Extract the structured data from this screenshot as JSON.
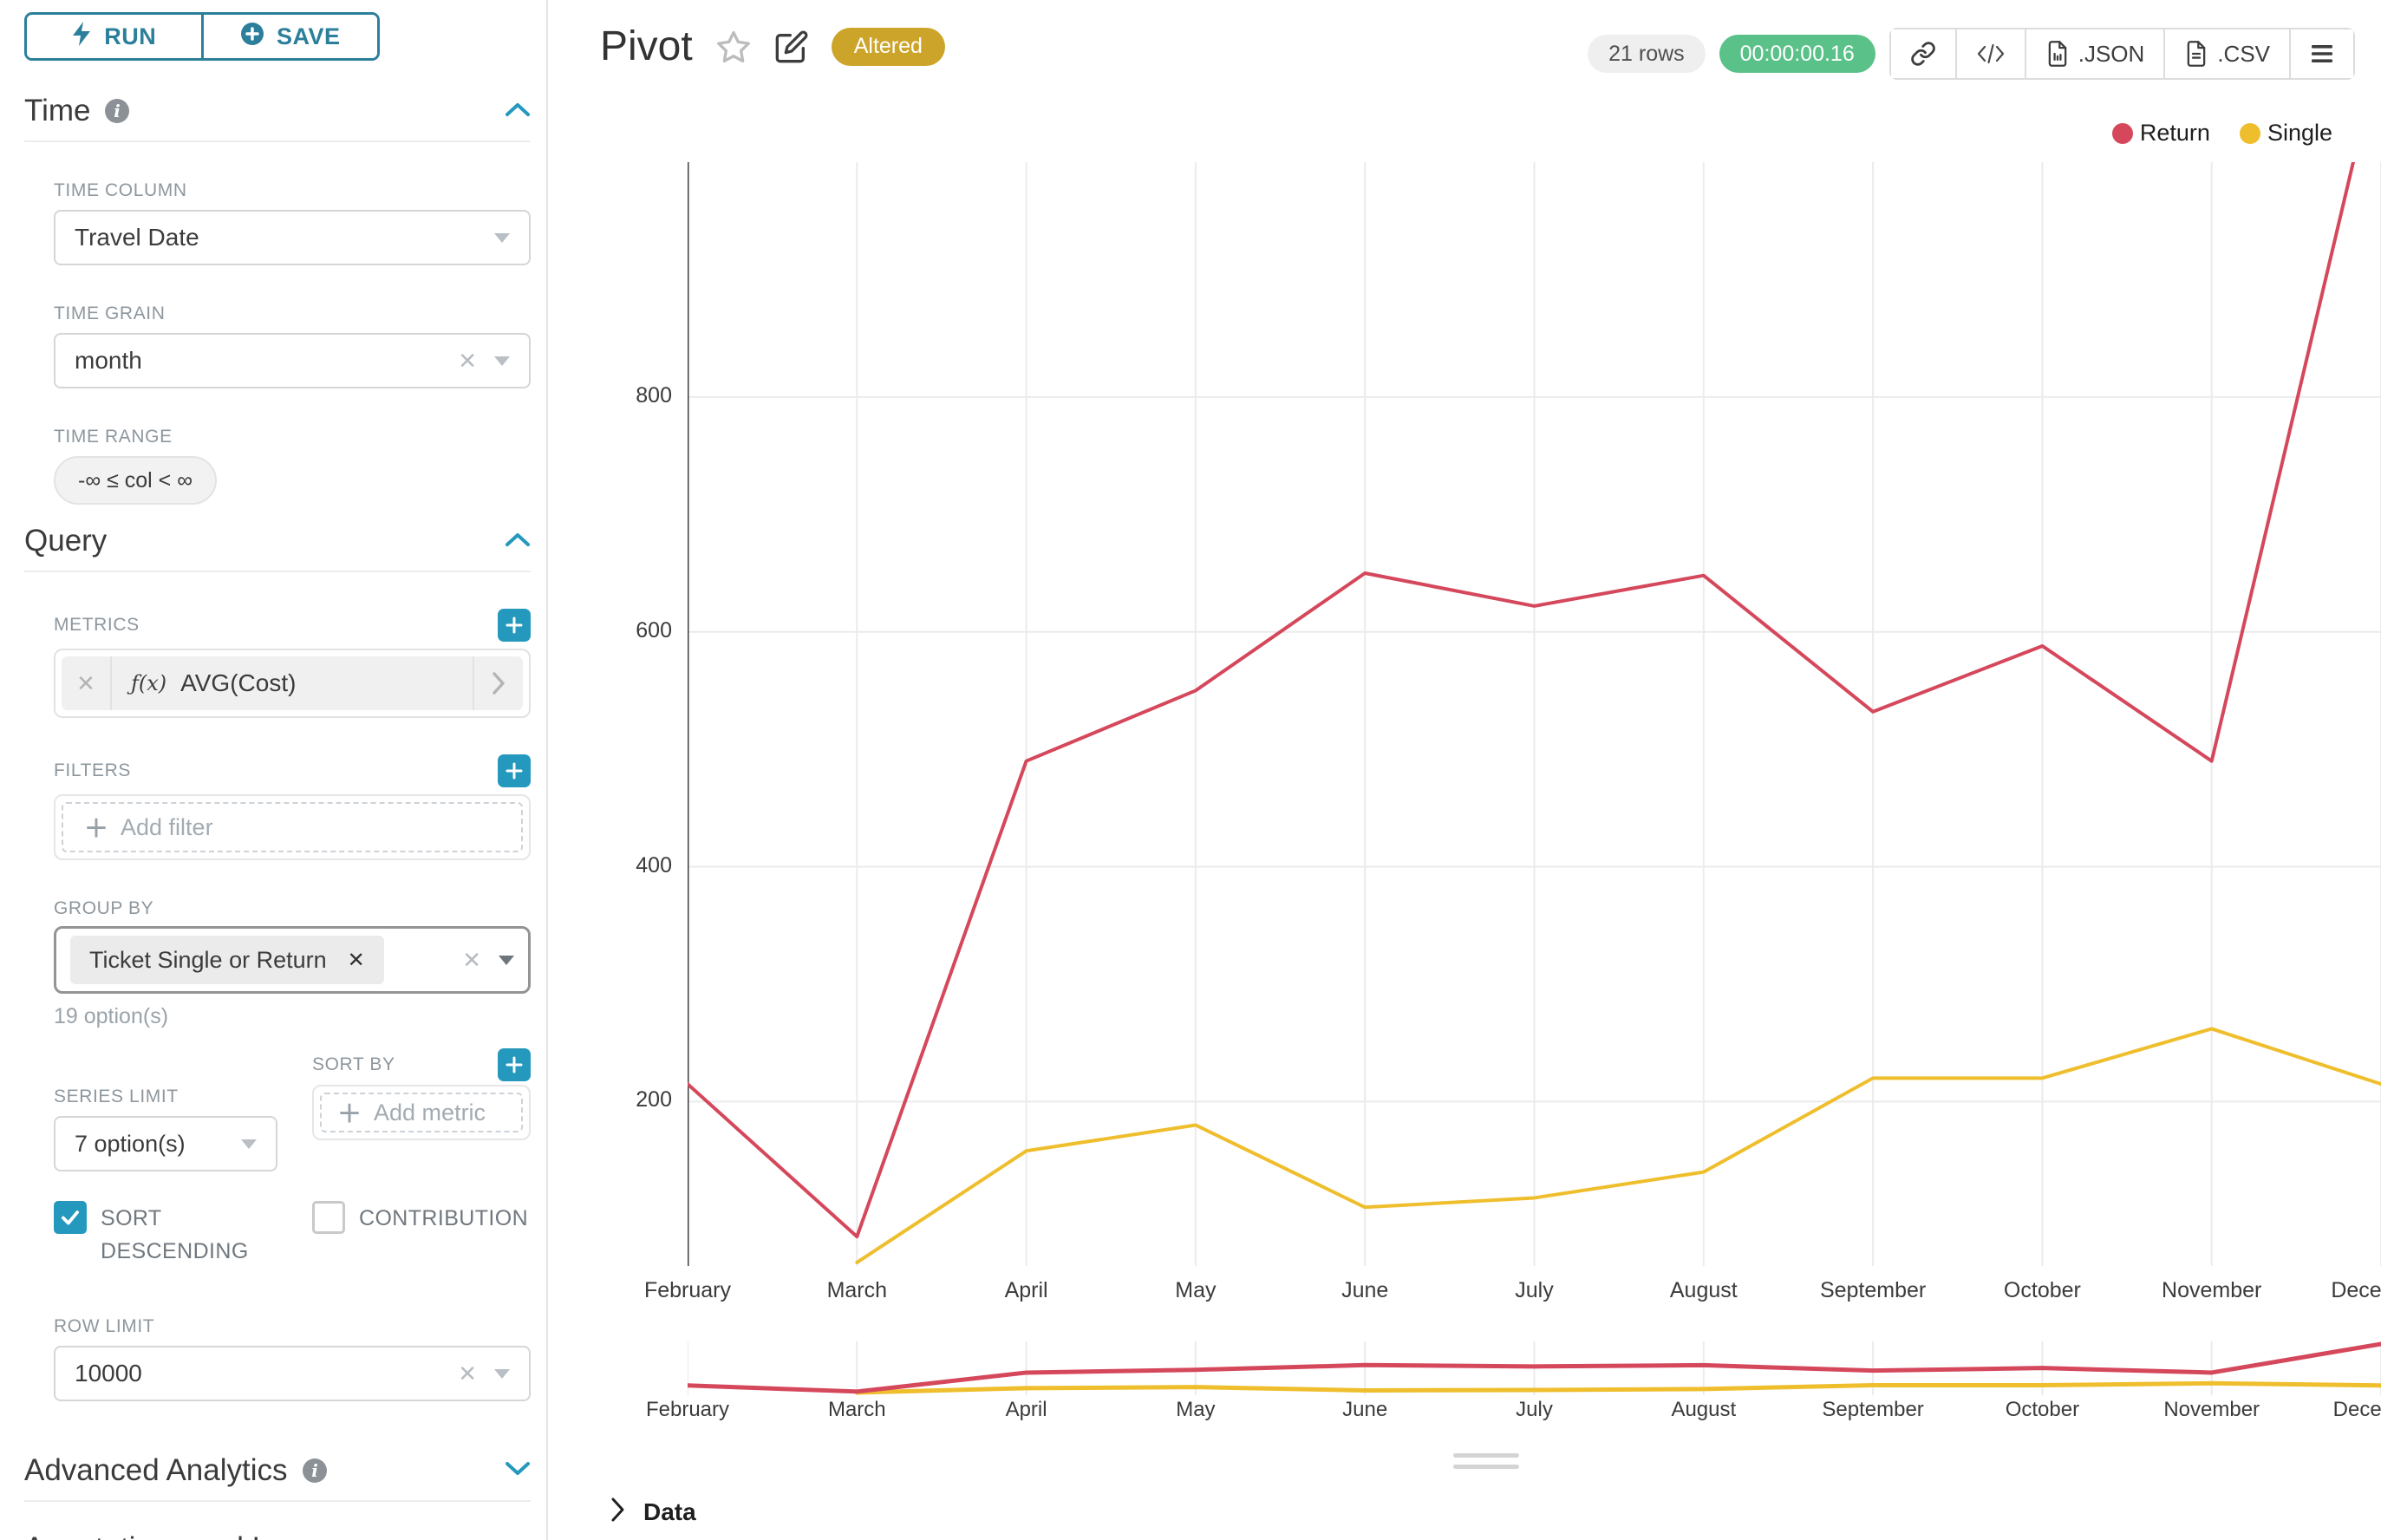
{
  "colors": {
    "accent": "#2499bd",
    "accent_text": "#2c7f9b",
    "altered_badge": "#cda42a",
    "success": "#5ac189",
    "grid": "#ebebeb",
    "axis": "#3f3f3f"
  },
  "sidebar": {
    "run_label": "RUN",
    "save_label": "SAVE",
    "time": {
      "title": "Time",
      "column_label": "TIME COLUMN",
      "column_value": "Travel Date",
      "grain_label": "TIME GRAIN",
      "grain_value": "month",
      "range_label": "TIME RANGE",
      "range_value": "-∞ ≤ col < ∞"
    },
    "query": {
      "title": "Query",
      "metrics_label": "METRICS",
      "metric_fx": "ƒ(x)",
      "metric_value": "AVG(Cost)",
      "filters_label": "FILTERS",
      "add_filter_placeholder": "Add filter",
      "group_by_label": "GROUP BY",
      "group_chip": "Ticket Single or Return",
      "options_hint": "19 option(s)",
      "series_limit_label": "SERIES LIMIT",
      "series_limit_value": "7 option(s)",
      "sort_by_label": "SORT BY",
      "add_metric_placeholder": "Add metric",
      "sort_descending_label": "SORT DESCENDING",
      "contribution_label": "CONTRIBUTION",
      "row_limit_label": "ROW LIMIT",
      "row_limit_value": "10000"
    },
    "advanced_title": "Advanced Analytics",
    "annotations_title": "Annotations and Layers"
  },
  "header": {
    "title": "Pivot",
    "altered_badge": "Altered",
    "rows_badge": "21 rows",
    "timer_badge": "00:00:00.16",
    "export_json_label": ".JSON",
    "export_csv_label": ".CSV"
  },
  "chart_data": {
    "type": "line",
    "title": "",
    "xlabel": "",
    "ylabel": "",
    "categories": [
      "February",
      "March",
      "April",
      "May",
      "June",
      "July",
      "August",
      "September",
      "October",
      "November",
      "December"
    ],
    "series": [
      {
        "name": "Return",
        "color": "#d5485c",
        "values": [
          215,
          85,
          490,
          550,
          650,
          622,
          648,
          532,
          588,
          490,
          1100
        ]
      },
      {
        "name": "Single",
        "color": "#efbe2d",
        "values": [
          null,
          63,
          158,
          180,
          110,
          118,
          140,
          220,
          220,
          262,
          215
        ]
      }
    ],
    "yticks": [
      200,
      400,
      600,
      800
    ],
    "ylim": [
      60,
      1000
    ],
    "grid": true,
    "legend_position": "top-right",
    "note": "December Return value exceeds axis max and is clipped at plot top; mini range-selector chart below repeats both series"
  },
  "footer": {
    "data_label": "Data"
  }
}
